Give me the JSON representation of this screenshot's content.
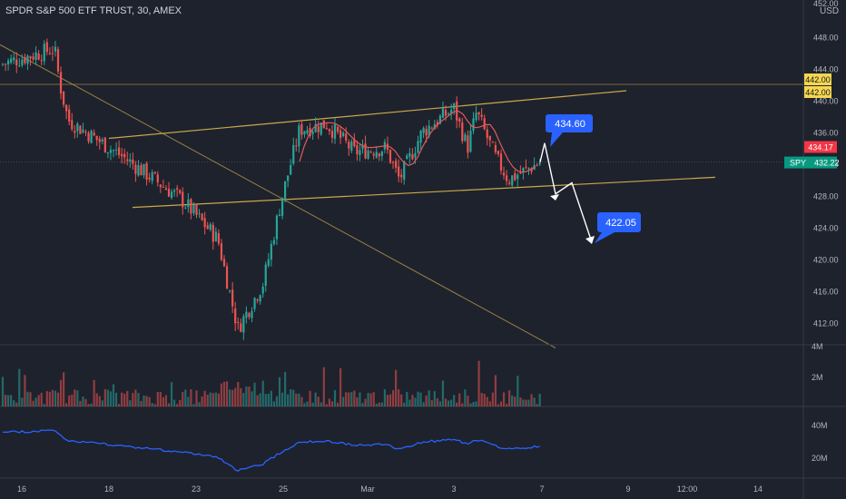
{
  "header": {
    "title": "SPDR S&P 500 ETF TRUST, 30, AMEX",
    "currency_label": "USD",
    "top_cut_label": "452.00"
  },
  "colors": {
    "background": "#1e222d",
    "up": "#26a69a",
    "down": "#ef5350",
    "trendline": "#c9a94c",
    "ma_line": "#e05b5b",
    "blue": "#2962ff",
    "osc_line": "#2962ff",
    "axis_text": "#b2b5be",
    "white": "#ffffff"
  },
  "chart_data": [
    {
      "type": "candlestick",
      "title": "SPDR S&P 500 ETF TRUST, 30, AMEX",
      "ylabel": "USD",
      "ylim": [
        408.5,
        453
      ],
      "y_ticks": [
        "448.00",
        "444.00",
        "440.00",
        "436.00",
        "432.00",
        "428.00",
        "424.00",
        "420.00",
        "416.00",
        "412.00"
      ],
      "x_ticks": [
        "16",
        "18",
        "23",
        "25",
        "Mar",
        "3",
        "7",
        "9",
        "12:00",
        "14"
      ],
      "close_path": [
        [
          "16",
          444.5
        ],
        [
          "17",
          446.5
        ],
        [
          "17",
          442.0
        ],
        [
          "18",
          437.5
        ],
        [
          "18",
          432.5
        ],
        [
          "22",
          427.5
        ],
        [
          "23",
          422.5
        ],
        [
          "24",
          411.2
        ],
        [
          "24",
          417.0
        ],
        [
          "25",
          427.5
        ],
        [
          "25",
          436.3
        ],
        [
          "28",
          437.0
        ],
        [
          "28",
          433.5
        ],
        [
          "1",
          434.0
        ],
        [
          "Mar",
          430.0
        ],
        [
          "2",
          436.0
        ],
        [
          "3",
          439.0
        ],
        [
          "3",
          434.0
        ],
        [
          "4",
          438.5
        ],
        [
          "4",
          433.0
        ],
        [
          "7",
          430.0
        ],
        [
          "7",
          432.2
        ]
      ],
      "horizontal_levels": [
        {
          "label": "442.00",
          "value": 442.0
        },
        {
          "label": "432.22",
          "value": 432.22,
          "symbol": "SPY"
        },
        {
          "label": "434.17",
          "value": 434.17
        }
      ],
      "annotations": [
        {
          "label": "434.60",
          "value": 434.6
        },
        {
          "label": "422.05",
          "value": 422.05
        }
      ],
      "grid": false
    },
    {
      "type": "bar",
      "title": "",
      "ylabel": "",
      "y_ticks": [
        "4M",
        "2M"
      ],
      "note": "volume histogram colored by candle direction"
    },
    {
      "type": "line",
      "title": "",
      "ylabel": "",
      "y_ticks": [
        "40M",
        "20M"
      ],
      "note": "cumulative volume style oscillator"
    }
  ]
}
